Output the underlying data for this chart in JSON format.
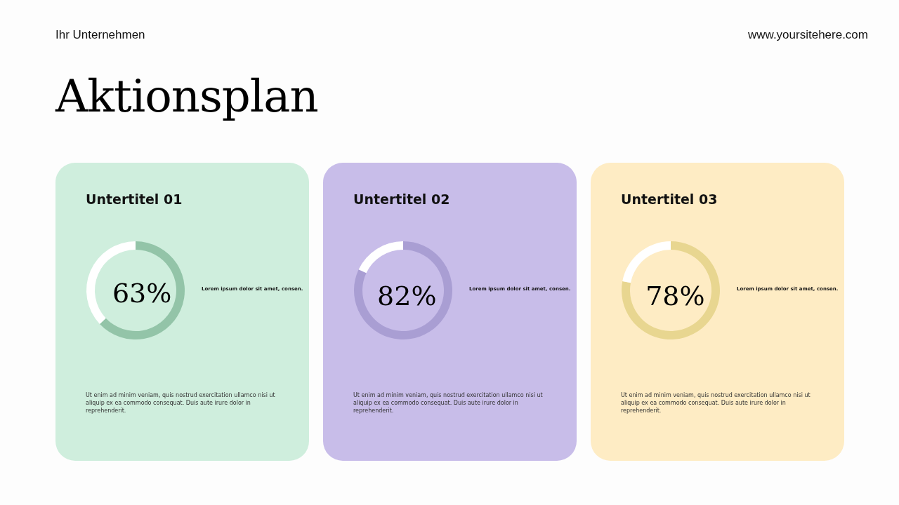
{
  "chart_data": [
    {
      "type": "donut",
      "title": "Aktionsplan",
      "subtitle": "Untertitel 01",
      "categories": [
        null,
        null
      ],
      "values": [
        63,
        37
      ],
      "colors": [
        "#93c4a8",
        "#ffffff"
      ],
      "value_labels": [
        "63%",
        null
      ],
      "annotations": [
        "Ihr Unternehmen",
        "www.yoursitehere.com",
        "Lorem ipsum dolor sit amet, consen.",
        "Ut enim ad minim veniam, quis nostrud exercitation ullamco nisi ut aliquip ex ea commodo consequat. Duis aute irure dolor in reprehenderit."
      ]
    },
    {
      "type": "donut",
      "subtitle": "Untertitel 02",
      "categories": [
        null,
        null
      ],
      "values": [
        82,
        18
      ],
      "colors": [
        "#a99ed3",
        "#ffffff"
      ],
      "value_labels": [
        "82%",
        null
      ],
      "annotations": [
        "Lorem ipsum dolor sit amet, consen.",
        "Ut enim ad minim veniam, quis nostrud exercitation ullamco nisi ut aliquip ex ea commodo consequat. Duis aute irure dolor in reprehenderit."
      ]
    },
    {
      "type": "donut",
      "subtitle": "Untertitel 03",
      "categories": [
        null,
        null
      ],
      "values": [
        78,
        22
      ],
      "colors": [
        "#e8d690",
        "#ffffff"
      ],
      "value_labels": [
        "78%",
        null
      ],
      "annotations": [
        "Lorem ipsum dolor sit amet, consen.",
        "Ut enim ad minim veniam, quis nostrud exercitation ullamco nisi ut aliquip ex ea commodo consequat. Duis aute irure dolor in reprehenderit."
      ]
    }
  ]
}
